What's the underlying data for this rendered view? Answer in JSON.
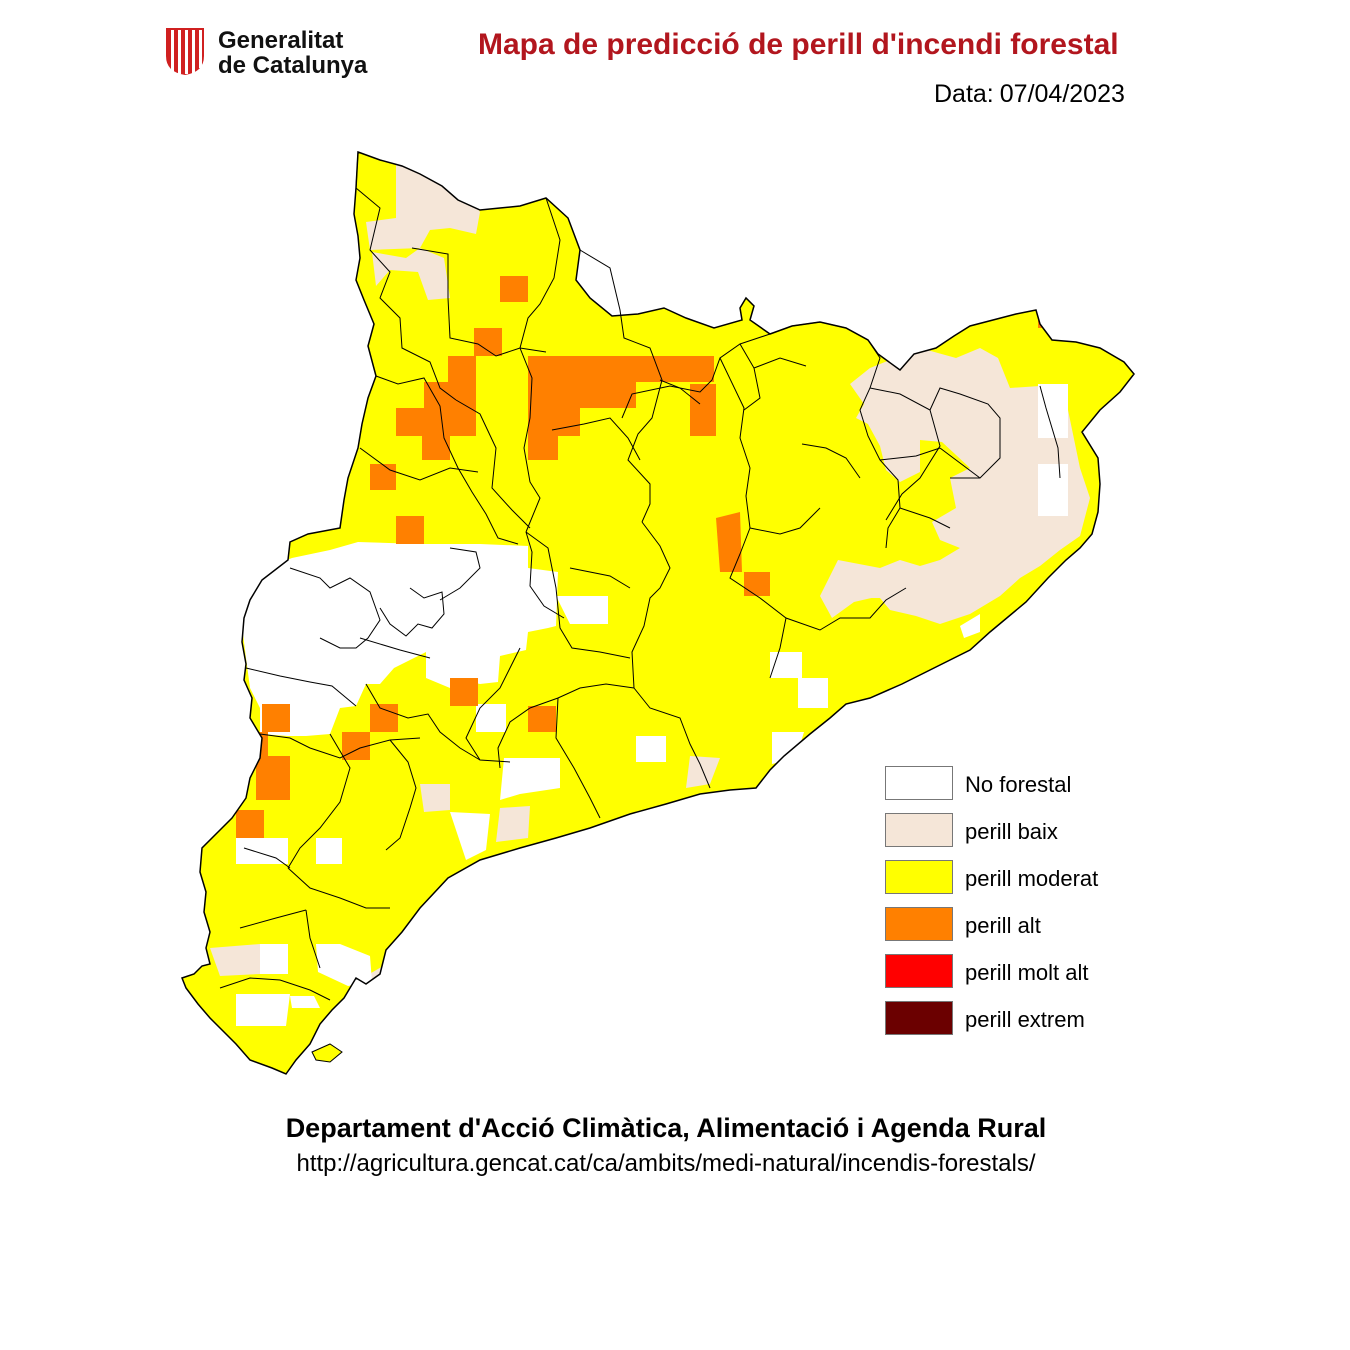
{
  "header": {
    "logo_line1": "Generalitat",
    "logo_line2": "de Catalunya",
    "title": "Mapa de predicció de perill d'incendi forestal",
    "date_label": "Data:",
    "date_value": "07/04/2023"
  },
  "legend": {
    "items": [
      {
        "label": "No forestal",
        "color": "#ffffff"
      },
      {
        "label": "perill baix",
        "color": "#f5e6d8"
      },
      {
        "label": "perill moderat",
        "color": "#ffff00"
      },
      {
        "label": "perill alt",
        "color": "#ff8000"
      },
      {
        "label": "perill molt alt",
        "color": "#ff0000"
      },
      {
        "label": "perill extrem",
        "color": "#6b0000"
      }
    ]
  },
  "footer": {
    "department": "Departament d'Acció Climàtica, Alimentació i Agenda Rural",
    "url": "http://agricultura.gencat.cat/ca/ambits/medi-natural/incendis-forestals/"
  },
  "colors": {
    "title": "#b2161e",
    "no_forestal": "#ffffff",
    "baix": "#f5e6d8",
    "moderat": "#ffff00",
    "alt": "#ff8000",
    "outline": "#000000"
  }
}
